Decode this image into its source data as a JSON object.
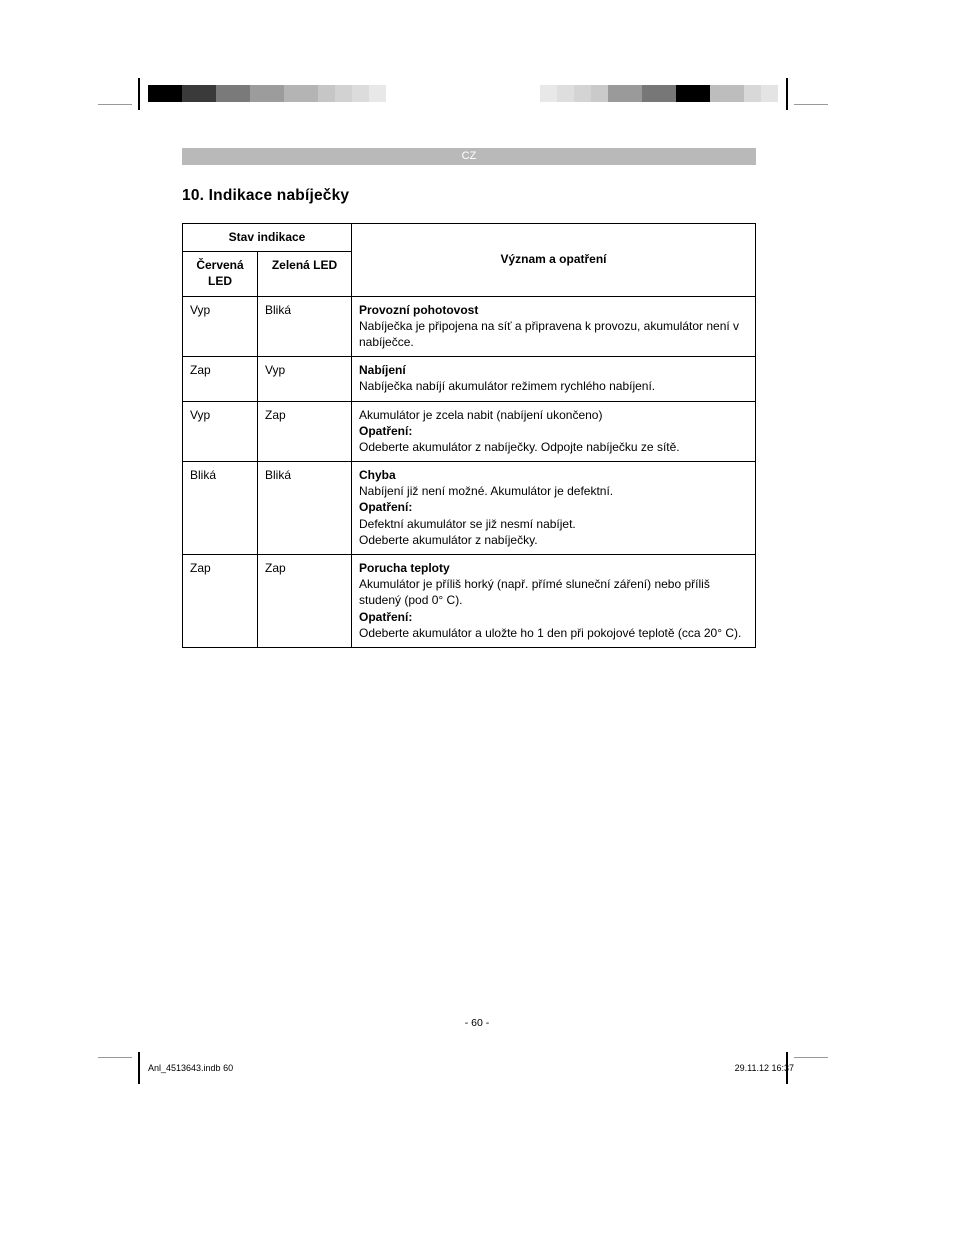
{
  "lang_code": "CZ",
  "section_title": "10. Indikace nabíječky",
  "page_num": "- 60 -",
  "footer_file": "Anl_4513643.indb   60",
  "footer_date": "29.11.12   16:37",
  "swatches_left": [
    "#000000",
    "#343434",
    "#5e5e5e",
    "#808080",
    "#9a9a9a",
    "#aeaeae",
    "#c0c0c0",
    "#d0d0d0",
    "#dedede"
  ],
  "swatches_right": [
    "#dedede",
    "#d0d0d0",
    "#c0c0c0",
    "#aeaeae",
    "#9a9a9a",
    "#808080",
    "#5e5e5e",
    "#343434",
    "#000000"
  ],
  "small_left": [
    "#cfcfcf",
    "#d8d8d8",
    "#e0e0e0",
    "#ffffff"
  ],
  "small_right": [
    "#ffffff",
    "#e0e0e0",
    "#d8d8d8",
    "#cfcfcf"
  ],
  "table": {
    "header_group": "Stav indikace",
    "header_red": "Červená LED",
    "header_green": "Zelená LED",
    "header_meaning": "Význam a opatření",
    "rows": [
      {
        "red": "Vyp",
        "green": "Bliká",
        "lines": [
          {
            "text": "Provozní pohotovost",
            "bold": true
          },
          {
            "text": "Nabíječka je připojena na síť a připravena k provozu, akumulátor není v nabíječce."
          }
        ]
      },
      {
        "red": "Zap",
        "green": "Vyp",
        "lines": [
          {
            "text": "Nabíjení",
            "bold": true
          },
          {
            "text": "Nabíječka nabíjí akumulátor režimem rychlého nabíjení."
          }
        ]
      },
      {
        "red": "Vyp",
        "green": "Zap",
        "lines": [
          {
            "text": "Akumulátor je zcela nabit (nabíjení ukončeno)"
          },
          {
            "text": "Opatření:",
            "bold": true
          },
          {
            "text": "Odeberte akumulátor z nabíječky. Odpojte nabíječku ze sítě."
          }
        ]
      },
      {
        "red": "Bliká",
        "green": "Bliká",
        "lines": [
          {
            "text": "Chyba",
            "bold": true
          },
          {
            "text": "Nabíjení již není možné. Akumulátor je defektní."
          },
          {
            "text": "Opatření:",
            "bold": true
          },
          {
            "text": "Defektní akumulátor se již nesmí nabíjet."
          },
          {
            "text": "Odeberte akumulátor z nabíječky."
          }
        ]
      },
      {
        "red": "Zap",
        "green": "Zap",
        "lines": [
          {
            "text": "Porucha teploty",
            "bold": true
          },
          {
            "text": "Akumulátor je příliš horký (např. přímé sluneční záření) nebo příliš studený (pod 0° C)."
          },
          {
            "text": "Opatření:",
            "bold": true
          },
          {
            "text": "Odeberte akumulátor a uložte ho 1 den při pokojové teplotě (cca 20° C)."
          }
        ]
      }
    ]
  }
}
